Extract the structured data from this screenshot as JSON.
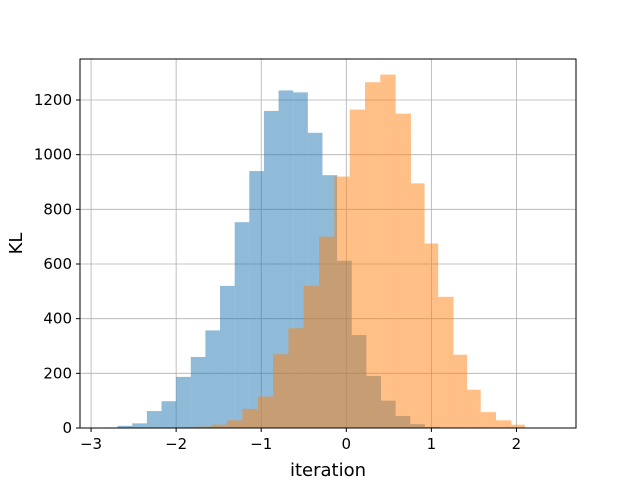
{
  "chart_data": {
    "type": "bar",
    "title": "",
    "xlabel": "iteration",
    "ylabel": "KL",
    "xlim": [
      -3.13,
      2.7
    ],
    "ylim": [
      0,
      1350
    ],
    "xticks": [
      -3,
      -2,
      -1,
      0,
      1,
      2
    ],
    "xtick_labels": [
      "−3",
      "−2",
      "−1",
      "0",
      "1",
      "2"
    ],
    "yticks": [
      0,
      200,
      400,
      600,
      800,
      1000,
      1200
    ],
    "ytick_labels": [
      "0",
      "200",
      "400",
      "600",
      "800",
      "1000",
      "1200"
    ],
    "grid": true,
    "series": [
      {
        "color": "#1f77b4",
        "opacity": 0.5,
        "bin_width": 0.172,
        "bin_edges": [
          -2.86,
          -2.688,
          -2.516,
          -2.344,
          -2.172,
          -2.0,
          -1.828,
          -1.656,
          -1.484,
          -1.312,
          -1.14,
          -0.968,
          -0.796,
          -0.624,
          -0.452,
          -0.28,
          -0.108,
          0.064,
          0.236,
          0.408,
          0.58,
          0.752,
          0.924,
          1.096
        ],
        "values": [
          2,
          8,
          17,
          62,
          98,
          187,
          260,
          357,
          520,
          753,
          940,
          1160,
          1235,
          1228,
          1080,
          925,
          612,
          340,
          190,
          100,
          44,
          14,
          4
        ]
      },
      {
        "color": "#ff7f0e",
        "opacity": 0.5,
        "bin_edges": [
          -1.94,
          -1.76,
          -1.58,
          -1.4,
          -1.22,
          -1.04,
          -0.86,
          -0.68,
          -0.5,
          -0.32,
          -0.14,
          0.04,
          0.22,
          0.4,
          0.58,
          0.76,
          0.92,
          1.08,
          1.26,
          1.42,
          1.58,
          1.76,
          1.94,
          2.1
        ],
        "values": [
          3,
          5,
          12,
          28,
          70,
          115,
          270,
          365,
          520,
          700,
          920,
          1165,
          1265,
          1293,
          1150,
          895,
          675,
          480,
          268,
          140,
          58,
          28,
          12
        ]
      }
    ]
  }
}
